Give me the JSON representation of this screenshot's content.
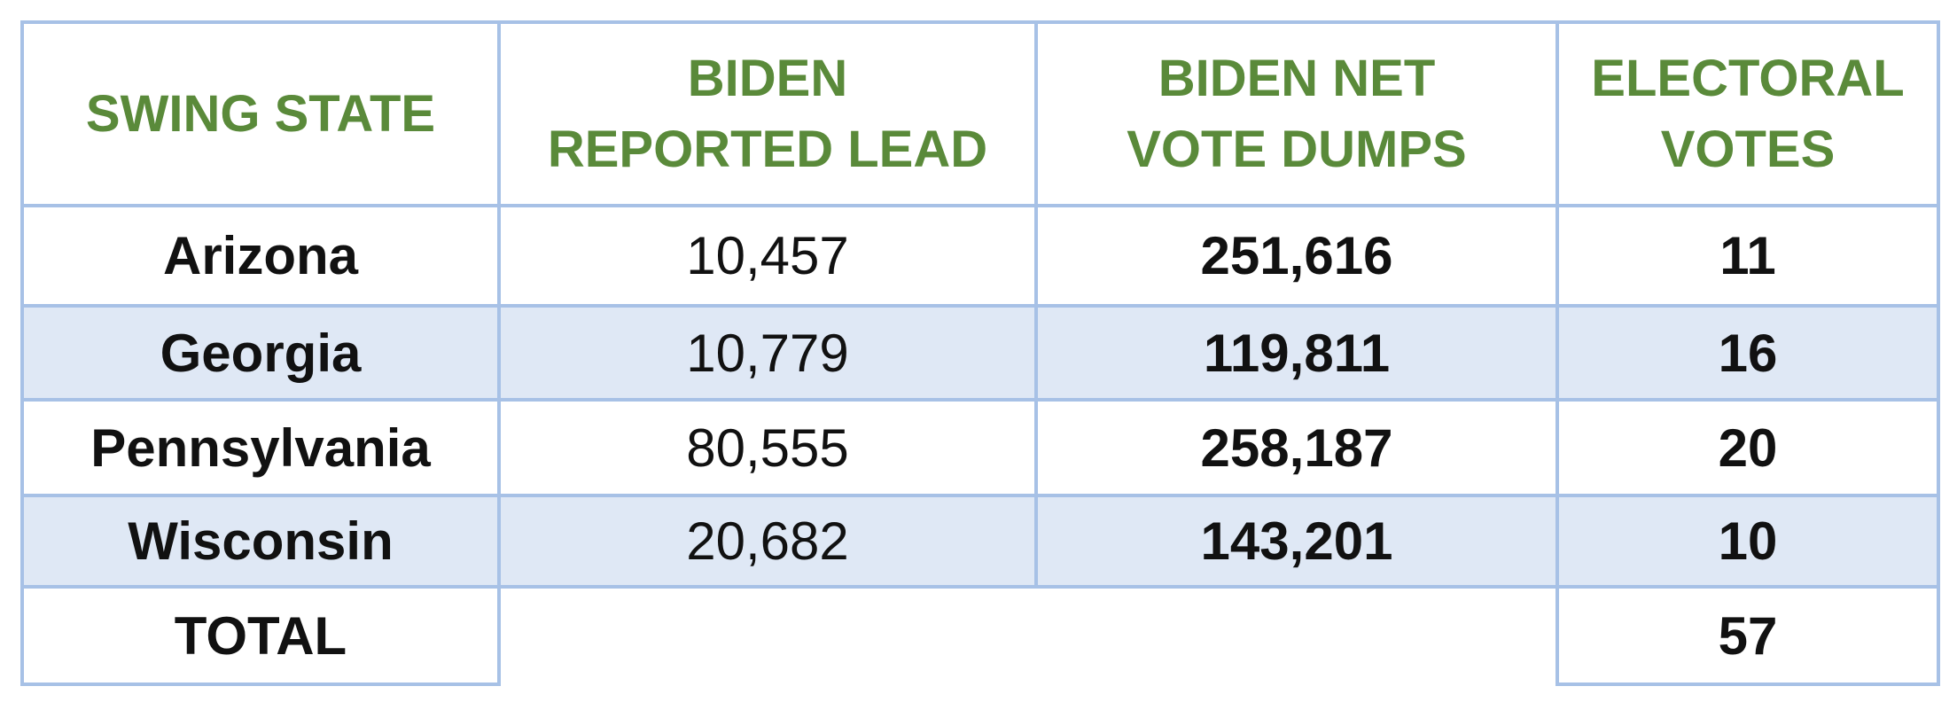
{
  "table": {
    "header": [
      "SWING STATE",
      "BIDEN\nREPORTED LEAD",
      "BIDEN NET\nVOTE DUMPS",
      "ELECTORAL\nVOTES"
    ],
    "rows": [
      [
        "Arizona",
        "10,457",
        "251,616",
        "11"
      ],
      [
        "Georgia",
        "10,779",
        "119,811",
        "16"
      ],
      [
        "Pennsylvania",
        "80,555",
        "258,187",
        "20"
      ],
      [
        "Wisconsin",
        "20,682",
        "143,201",
        "10"
      ]
    ],
    "total": {
      "label": "TOTAL",
      "electoral_votes": "57"
    }
  }
}
